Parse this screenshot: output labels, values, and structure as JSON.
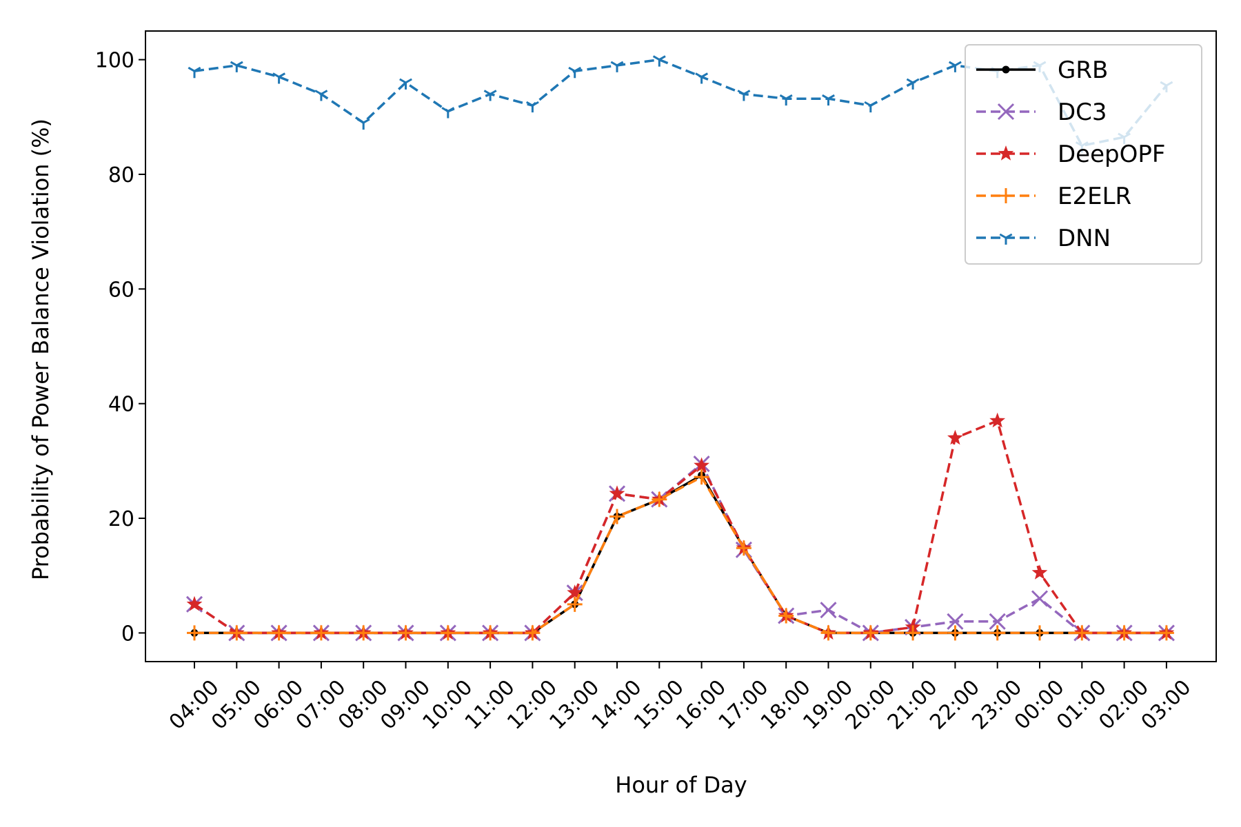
{
  "chart_data": {
    "type": "line",
    "title": "",
    "xlabel": "Hour of Day",
    "ylabel": "Probability of Power Balance Violation (%)",
    "categories": [
      "04:00",
      "05:00",
      "06:00",
      "07:00",
      "08:00",
      "09:00",
      "10:00",
      "11:00",
      "12:00",
      "13:00",
      "14:00",
      "15:00",
      "16:00",
      "17:00",
      "18:00",
      "19:00",
      "20:00",
      "21:00",
      "22:00",
      "23:00",
      "00:00",
      "01:00",
      "02:00",
      "03:00"
    ],
    "ylim": [
      -5,
      105
    ],
    "yticks": [
      0,
      20,
      40,
      60,
      80,
      100
    ],
    "grid": false,
    "legend_position": "top-right",
    "series": [
      {
        "name": "GRB",
        "color": "#000000",
        "dash": "solid",
        "marker": "dot",
        "values": [
          0,
          0,
          0,
          0,
          0,
          0,
          0,
          0,
          0,
          5,
          20.3,
          23.3,
          27.5,
          14.8,
          3,
          0,
          0,
          0,
          0,
          0,
          0,
          0,
          0,
          0
        ]
      },
      {
        "name": "DC3",
        "color": "#9467bd",
        "dash": "dashed",
        "marker": "x",
        "values": [
          5,
          0,
          0,
          0,
          0,
          0,
          0,
          0,
          0,
          7,
          24.3,
          23.3,
          29.5,
          14.5,
          3,
          4,
          0,
          1,
          2,
          2,
          6,
          0,
          0,
          0
        ]
      },
      {
        "name": "DeepOPF",
        "color": "#d62728",
        "dash": "dashed",
        "marker": "star",
        "values": [
          5,
          0,
          0,
          0,
          0,
          0,
          0,
          0,
          0,
          7,
          24.3,
          23.3,
          29.2,
          14.8,
          3,
          0,
          0,
          1,
          34,
          37,
          10.5,
          0,
          0,
          0
        ]
      },
      {
        "name": "E2ELR",
        "color": "#ff7f0e",
        "dash": "dashed",
        "marker": "plus",
        "values": [
          0,
          0,
          0,
          0,
          0,
          0,
          0,
          0,
          0,
          5,
          20.3,
          23.3,
          27.2,
          14.8,
          3,
          0,
          0,
          0,
          0,
          0,
          0,
          0,
          0,
          0
        ]
      },
      {
        "name": "DNN",
        "color": "#1f77b4",
        "dash": "dashed",
        "marker": "tri",
        "values": [
          98,
          99,
          97,
          94,
          89,
          96,
          91,
          94,
          92,
          98,
          99,
          100,
          97,
          94,
          93.2,
          93.2,
          92,
          96,
          99,
          98,
          99,
          85,
          86.5,
          95.5
        ]
      }
    ]
  }
}
